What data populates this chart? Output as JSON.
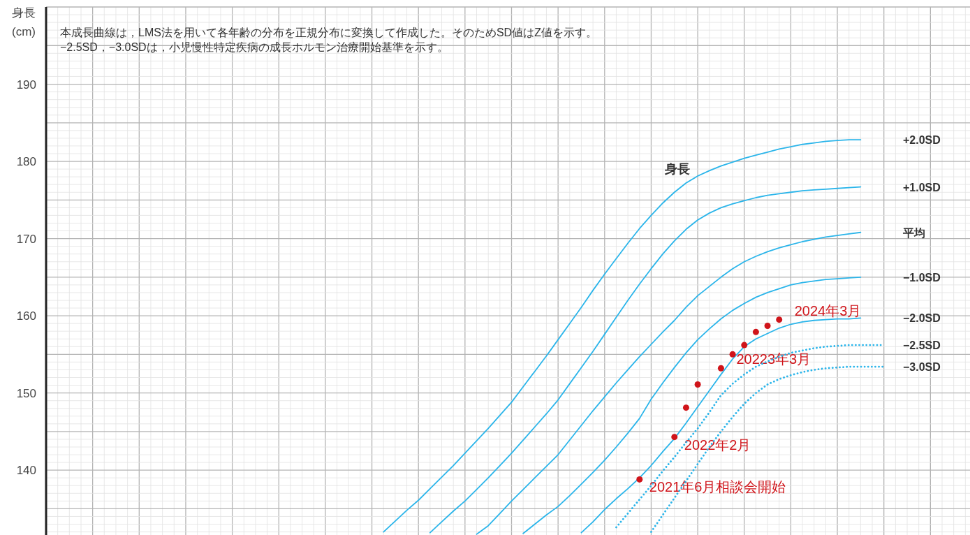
{
  "chart_data": {
    "type": "line",
    "title": "身長",
    "ylabel": "身長\n(cm)",
    "annotations": [
      "本成長曲線は，LMS法を用いて各年齢の分布を正規分布に変換して作成した。そのためSD値はZ値を示す。",
      "−2.5SD，−3.0SDは，小児慢性特定疾病の成長ホルモン治療開始基準を示す。"
    ],
    "categories": [
      null,
      null,
      null,
      null,
      null,
      null,
      null,
      null,
      null,
      null,
      null,
      null,
      null,
      null,
      null,
      null,
      null,
      null,
      null,
      null,
      null,
      null,
      null,
      null,
      null,
      null,
      null,
      null,
      null,
      null,
      null,
      null,
      null,
      null,
      null,
      null,
      null,
      null,
      null,
      null,
      null,
      null,
      null,
      null,
      null,
      null,
      null,
      null,
      null,
      null,
      null,
      null,
      null,
      null,
      null,
      null,
      null,
      null,
      null,
      null,
      null,
      null,
      null,
      null,
      null,
      null,
      null,
      null,
      null,
      null,
      null,
      null,
      null,
      null,
      null,
      null,
      null,
      null,
      null,
      null
    ],
    "ylim": [
      131.6,
      200.0
    ],
    "yticks": [
      140,
      150,
      160,
      170,
      180,
      190
    ],
    "grid": true,
    "series": [
      {
        "name": "+2.0SD",
        "type": "line",
        "line_style": "solid",
        "color": "#2bb5ea",
        "values": [
          null,
          null,
          null,
          null,
          null,
          null,
          null,
          null,
          null,
          null,
          null,
          null,
          null,
          null,
          null,
          null,
          null,
          null,
          null,
          null,
          null,
          null,
          null,
          null,
          null,
          null,
          null,
          null,
          null,
          132.0,
          133.4,
          134.8,
          136.1,
          137.6,
          139.1,
          140.6,
          142.2,
          143.8,
          145.4,
          147.1,
          148.8,
          150.8,
          152.8,
          154.8,
          156.9,
          159.0,
          161.1,
          163.3,
          165.4,
          167.4,
          169.4,
          171.3,
          173.0,
          174.6,
          176.0,
          177.2,
          178.1,
          178.8,
          179.4,
          179.9,
          180.4,
          180.8,
          181.2,
          181.6,
          181.9,
          182.2,
          182.4,
          182.6,
          182.7,
          182.8,
          182.8,
          null,
          null,
          null,
          null,
          null,
          null,
          null,
          null,
          null
        ]
      },
      {
        "name": "+1.0SD",
        "type": "line",
        "line_style": "solid",
        "color": "#2bb5ea",
        "values": [
          null,
          null,
          null,
          null,
          null,
          null,
          null,
          null,
          null,
          null,
          null,
          null,
          null,
          null,
          null,
          null,
          null,
          null,
          null,
          null,
          null,
          null,
          null,
          null,
          null,
          null,
          null,
          null,
          null,
          null,
          null,
          null,
          null,
          131.9,
          133.3,
          134.7,
          136.0,
          137.5,
          139.0,
          140.6,
          142.2,
          143.9,
          145.6,
          147.3,
          149.1,
          151.2,
          153.3,
          155.4,
          157.6,
          159.8,
          162.0,
          164.1,
          166.1,
          168.0,
          169.7,
          171.2,
          172.4,
          173.3,
          174.0,
          174.5,
          174.9,
          175.3,
          175.6,
          175.8,
          176.0,
          176.2,
          176.3,
          176.4,
          176.5,
          176.6,
          176.7,
          null,
          null,
          null,
          null,
          null,
          null,
          null,
          null,
          null
        ]
      },
      {
        "name": "平均",
        "type": "line",
        "line_style": "solid",
        "color": "#2bb5ea",
        "values": [
          null,
          null,
          null,
          null,
          null,
          null,
          null,
          null,
          null,
          null,
          null,
          null,
          null,
          null,
          null,
          null,
          null,
          null,
          null,
          null,
          null,
          null,
          null,
          null,
          null,
          null,
          null,
          null,
          null,
          null,
          null,
          null,
          null,
          null,
          null,
          null,
          null,
          131.7,
          132.8,
          134.4,
          136.0,
          137.5,
          139.0,
          140.5,
          142.0,
          143.9,
          145.8,
          147.7,
          149.5,
          151.3,
          153.0,
          154.7,
          156.3,
          157.9,
          159.4,
          161.1,
          162.6,
          163.8,
          165.0,
          166.1,
          167.0,
          167.7,
          168.3,
          168.8,
          169.2,
          169.6,
          169.9,
          170.2,
          170.4,
          170.6,
          170.8,
          null,
          null,
          null,
          null,
          null,
          null,
          null,
          null,
          null
        ]
      },
      {
        "name": "−1.0SD",
        "type": "line",
        "line_style": "solid",
        "color": "#2bb5ea",
        "values": [
          null,
          null,
          null,
          null,
          null,
          null,
          null,
          null,
          null,
          null,
          null,
          null,
          null,
          null,
          null,
          null,
          null,
          null,
          null,
          null,
          null,
          null,
          null,
          null,
          null,
          null,
          null,
          null,
          null,
          null,
          null,
          null,
          null,
          null,
          null,
          null,
          null,
          null,
          null,
          null,
          null,
          131.8,
          133.0,
          134.2,
          135.3,
          136.7,
          138.2,
          139.7,
          141.3,
          143.0,
          144.8,
          146.7,
          149.2,
          151.3,
          153.3,
          155.2,
          156.9,
          158.3,
          159.6,
          160.7,
          161.6,
          162.4,
          163.0,
          163.5,
          164.0,
          164.3,
          164.5,
          164.7,
          164.8,
          164.9,
          165.0,
          null,
          null,
          null,
          null,
          null,
          null,
          null,
          null,
          null
        ]
      },
      {
        "name": "−2.0SD",
        "type": "line",
        "line_style": "solid",
        "color": "#2bb5ea",
        "values": [
          null,
          null,
          null,
          null,
          null,
          null,
          null,
          null,
          null,
          null,
          null,
          null,
          null,
          null,
          null,
          null,
          null,
          null,
          null,
          null,
          null,
          null,
          null,
          null,
          null,
          null,
          null,
          null,
          null,
          null,
          null,
          null,
          null,
          null,
          null,
          null,
          null,
          null,
          null,
          null,
          null,
          null,
          null,
          null,
          null,
          null,
          131.9,
          133.3,
          134.9,
          136.3,
          137.6,
          139.0,
          140.6,
          142.4,
          144.1,
          146.1,
          148.2,
          150.3,
          152.4,
          154.4,
          156.0,
          157.0,
          157.7,
          158.4,
          158.9,
          159.2,
          159.4,
          159.5,
          159.6,
          159.6,
          159.7,
          null,
          null,
          null,
          null,
          null,
          null,
          null,
          null,
          null
        ]
      },
      {
        "name": "−2.5SD",
        "type": "line",
        "line_style": "dotted",
        "color": "#2bb5ea",
        "values": [
          null,
          null,
          null,
          null,
          null,
          null,
          null,
          null,
          null,
          null,
          null,
          null,
          null,
          null,
          null,
          null,
          null,
          null,
          null,
          null,
          null,
          null,
          null,
          null,
          null,
          null,
          null,
          null,
          null,
          null,
          null,
          null,
          null,
          null,
          null,
          null,
          null,
          null,
          null,
          null,
          null,
          null,
          null,
          null,
          null,
          null,
          null,
          null,
          null,
          132.6,
          134.4,
          136.2,
          138.0,
          139.9,
          141.7,
          143.6,
          145.4,
          147.5,
          149.7,
          151.2,
          152.4,
          153.4,
          154.1,
          154.7,
          155.2,
          155.5,
          155.8,
          156.0,
          156.1,
          156.2,
          156.2,
          156.2,
          156.2,
          null,
          null,
          null,
          null,
          null,
          null,
          null
        ]
      },
      {
        "name": "−3.0SD",
        "type": "line",
        "line_style": "dotted",
        "color": "#2bb5ea",
        "values": [
          null,
          null,
          null,
          null,
          null,
          null,
          null,
          null,
          null,
          null,
          null,
          null,
          null,
          null,
          null,
          null,
          null,
          null,
          null,
          null,
          null,
          null,
          null,
          null,
          null,
          null,
          null,
          null,
          null,
          null,
          null,
          null,
          null,
          null,
          null,
          null,
          null,
          null,
          null,
          null,
          null,
          null,
          null,
          null,
          null,
          null,
          null,
          null,
          null,
          null,
          null,
          null,
          132.0,
          134.2,
          136.4,
          138.6,
          140.8,
          143.0,
          145.0,
          146.9,
          148.6,
          150.0,
          151.1,
          151.8,
          152.3,
          152.7,
          153.0,
          153.2,
          153.3,
          153.4,
          153.4,
          153.4,
          153.4,
          null,
          null,
          null,
          null,
          null,
          null,
          null
        ]
      },
      {
        "type": "scatter",
        "marker": "circle",
        "color": "#d0141a",
        "values": [
          null,
          null,
          null,
          null,
          null,
          null,
          null,
          null,
          null,
          null,
          null,
          null,
          null,
          null,
          null,
          null,
          null,
          null,
          null,
          null,
          null,
          null,
          null,
          null,
          null,
          null,
          null,
          null,
          null,
          null,
          null,
          null,
          null,
          null,
          null,
          null,
          null,
          null,
          null,
          null,
          null,
          null,
          null,
          null,
          null,
          null,
          null,
          null,
          null,
          null,
          null,
          138.8,
          null,
          null,
          144.3,
          148.1,
          151.1,
          null,
          153.2,
          155.0,
          156.2,
          157.9,
          158.7,
          159.5,
          null,
          null,
          null,
          null,
          null,
          null,
          null,
          null,
          null,
          null,
          null,
          null,
          null,
          null,
          null,
          null
        ],
        "value_labels": [
          null,
          null,
          null,
          null,
          null,
          null,
          null,
          null,
          null,
          null,
          null,
          null,
          null,
          null,
          null,
          null,
          null,
          null,
          null,
          null,
          null,
          null,
          null,
          null,
          null,
          null,
          null,
          null,
          null,
          null,
          null,
          null,
          null,
          null,
          null,
          null,
          null,
          null,
          null,
          null,
          null,
          null,
          null,
          null,
          null,
          null,
          null,
          null,
          null,
          null,
          null,
          "2021年6月相談会開始",
          null,
          null,
          "2022年2月",
          null,
          null,
          null,
          "20223年3月",
          null,
          null,
          null,
          null,
          "2024年3月",
          null,
          null,
          null,
          null,
          null,
          null,
          null,
          null,
          null,
          null,
          null,
          null,
          null,
          null,
          null,
          null
        ]
      }
    ]
  }
}
